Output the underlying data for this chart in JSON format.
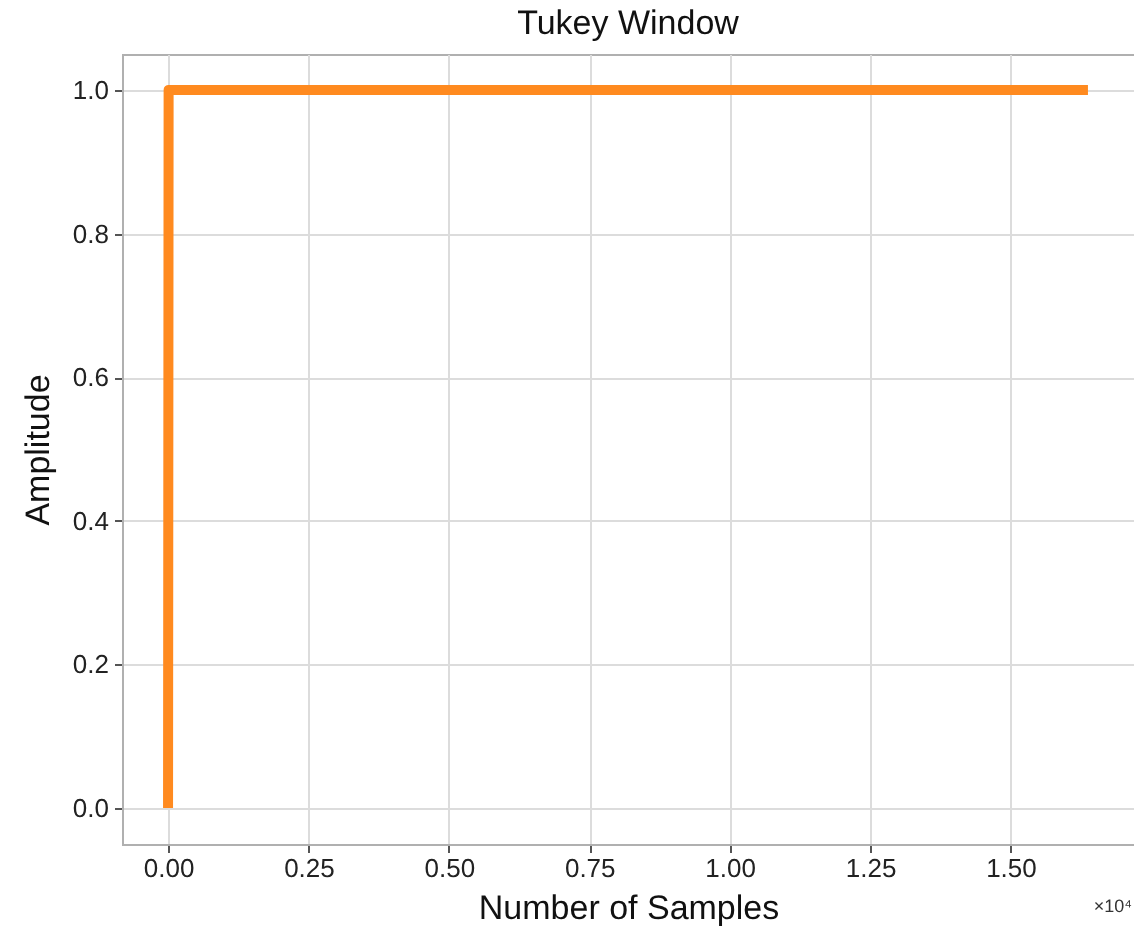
{
  "chart_data": {
    "type": "line",
    "title": "Tukey Window",
    "xlabel": "Number of Samples",
    "ylabel": "Amplitude",
    "annotations": [
      "×10⁴"
    ],
    "x": [
      0,
      0.001,
      1.638
    ],
    "values": [
      0,
      1,
      1
    ],
    "color": "#ff8a1f",
    "xlim": [
      -0.082,
      1.72
    ],
    "ylim": [
      -0.05,
      1.05
    ],
    "xticks": [
      {
        "value": 0,
        "label": "0.00"
      },
      0.25,
      {
        "value": 0.5,
        "label": "0.50"
      },
      0.75,
      {
        "value": 1,
        "label": "1.00"
      },
      1.25,
      {
        "value": 1.5,
        "label": "1.50"
      }
    ],
    "yticks": [
      {
        "value": 0,
        "label": "0.0"
      },
      0.2,
      0.4,
      0.6,
      0.8,
      {
        "value": 1,
        "label": "1.0"
      }
    ],
    "grid": true
  }
}
